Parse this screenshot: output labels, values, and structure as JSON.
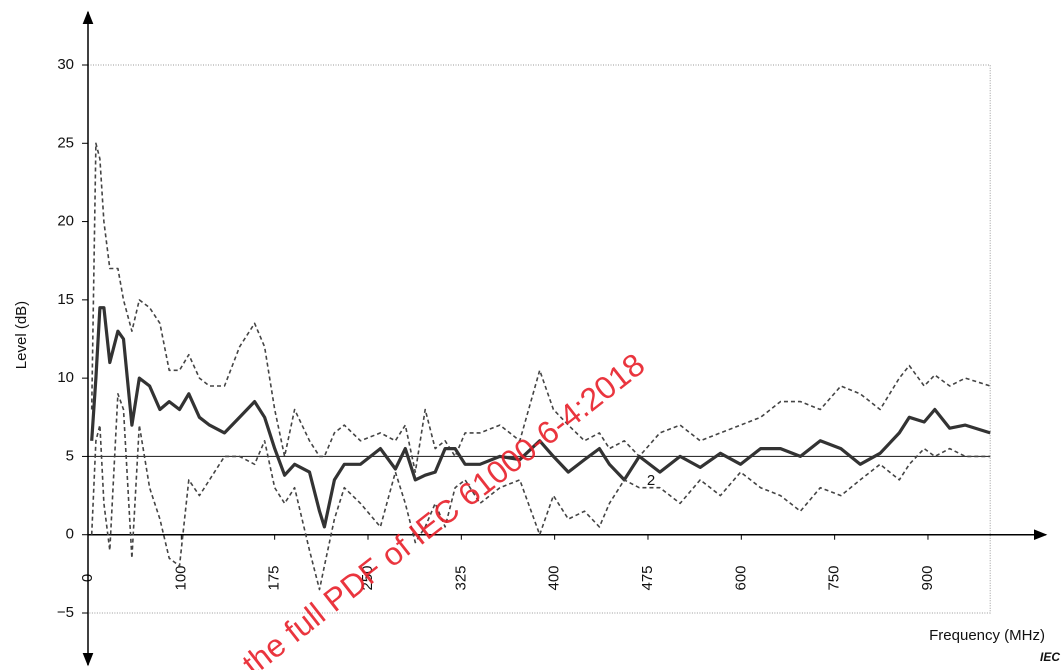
{
  "chart_data": {
    "type": "line",
    "xlabel": "Frequency  (MHz)",
    "ylabel": "Level  (dB)",
    "x": [
      4,
      8.5,
      12.8,
      17,
      23.4,
      32,
      38,
      47,
      55,
      66,
      77,
      87,
      98,
      106,
      114.5,
      122.6,
      134.7,
      146.8,
      158.9,
      166.9,
      175,
      183,
      191,
      203,
      211,
      215,
      223,
      231,
      244,
      260,
      272,
      280,
      288,
      296,
      304,
      312,
      320,
      328,
      340,
      356,
      372,
      388,
      399,
      411,
      424,
      436,
      444,
      456,
      468,
      491,
      518,
      545,
      572,
      599,
      631,
      663,
      695,
      727,
      760,
      791,
      823,
      854,
      870,
      894,
      911,
      935,
      960,
      1000
    ],
    "series": [
      {
        "color": "#444444",
        "dash": "dashed",
        "width": 1.6,
        "values": [
          8,
          25,
          24,
          20,
          17,
          17,
          15,
          13,
          15,
          14.5,
          13.5,
          10.5,
          10.5,
          11.5,
          10,
          9.5,
          9.5,
          12,
          13.5,
          12,
          8,
          5,
          8,
          6,
          5,
          5,
          6.5,
          7,
          6,
          6.5,
          6,
          7,
          4,
          8,
          5.5,
          6,
          5,
          6.5,
          6.5,
          7,
          6,
          10.5,
          8,
          7,
          6,
          6.5,
          5.5,
          6,
          5,
          6.5,
          7,
          6,
          6.5,
          7,
          7.5,
          8.5,
          8.5,
          8,
          9.5,
          9,
          8,
          10,
          10.8,
          9.5,
          10.2,
          9.5,
          10,
          9.5
        ]
      },
      {
        "color": "#333333",
        "dash": "solid",
        "width": 3.2,
        "values": [
          6,
          10,
          14.5,
          14.5,
          11,
          13,
          12.5,
          7,
          10,
          9.5,
          8,
          8.5,
          8,
          9,
          7.5,
          7,
          6.5,
          7.5,
          8.5,
          7.5,
          5.5,
          3.8,
          4.5,
          4,
          1.5,
          0.5,
          3.5,
          4.5,
          4.5,
          5.5,
          4.2,
          5.5,
          3.5,
          3.8,
          4,
          5.5,
          5.5,
          4.5,
          4.5,
          5,
          4.8,
          6,
          5,
          4,
          4.8,
          5.5,
          4.5,
          3.5,
          5,
          4,
          5,
          4.3,
          5.2,
          4.5,
          5.5,
          5.5,
          5,
          6,
          5.5,
          4.5,
          5.2,
          6.5,
          7.5,
          7.2,
          8,
          6.8,
          7,
          6.5
        ]
      },
      {
        "color": "#444444",
        "dash": "dashed",
        "width": 1.6,
        "values": [
          0,
          6,
          7,
          2,
          -1,
          9,
          8,
          -1.5,
          7,
          3,
          1,
          -1.5,
          -2,
          3.5,
          2.5,
          3.5,
          5,
          5,
          4.5,
          6,
          3,
          2,
          3,
          -1,
          -3.5,
          -2,
          1,
          3,
          2,
          0.5,
          4,
          2,
          -0.5,
          0.5,
          2,
          0.5,
          3,
          3.5,
          2,
          3,
          3.5,
          0,
          2.5,
          1,
          1.5,
          0.5,
          2,
          3.5,
          3,
          3,
          2,
          3.5,
          2.5,
          4,
          3,
          2.5,
          1.5,
          3,
          2.5,
          3.5,
          4.5,
          3.5,
          4.5,
          5.5,
          5,
          5.5,
          5,
          5
        ]
      }
    ],
    "reference_line": 5,
    "annotation": "2",
    "xlim": [
      0,
      1000
    ],
    "xticks": [
      0,
      100,
      175,
      250,
      325,
      400,
      475,
      600,
      750,
      900
    ],
    "ylim": [
      -5,
      30
    ],
    "yticks": [
      30,
      25,
      20,
      15,
      10,
      5,
      0,
      {
        "value": -5,
        "label": "−5"
      }
    ],
    "watermark": "the full PDF of IEC 61000-6-4:2018",
    "source": "IEC"
  }
}
